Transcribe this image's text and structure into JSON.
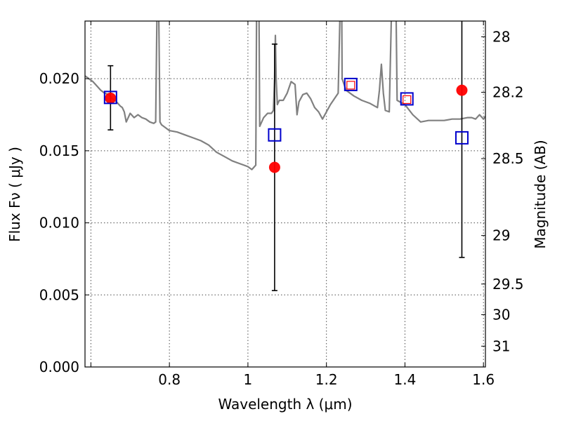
{
  "chart_data": {
    "type": "scatter",
    "xlabel": "Wavelength  λ (μm)",
    "ylabel": "Flux  Fν  ( μJy )",
    "ylabel_right": "Magnitude (AB)",
    "xlim": [
      0.585,
      1.605
    ],
    "ylim": [
      0.0,
      0.024
    ],
    "x_ticks": [
      0.6,
      0.8,
      1.0,
      1.2,
      1.4,
      1.6
    ],
    "x_tick_labels": [
      "",
      "0.8",
      "1",
      "1.2",
      "1.4",
      "1.6"
    ],
    "y_ticks": [
      0.0,
      0.005,
      0.01,
      0.015,
      0.02
    ],
    "y_tick_labels": [
      "0.000",
      "0.005",
      "0.010",
      "0.015",
      "0.020"
    ],
    "right_ticks": [
      {
        "mag": 28,
        "label": "28"
      },
      {
        "mag": 28.2,
        "label": "28.2"
      },
      {
        "mag": 28.5,
        "label": "28.5"
      },
      {
        "mag": 29,
        "label": "29"
      },
      {
        "mag": 29.5,
        "label": "29.5"
      },
      {
        "mag": 30,
        "label": "30"
      },
      {
        "mag": 31,
        "label": "31"
      }
    ],
    "grid": true,
    "colors": {
      "model": "#808080",
      "observed": "#ff0000",
      "model_band": "#0000cc",
      "errorbar": "#000000"
    },
    "model_spectrum": {
      "x": [
        0.585,
        0.595,
        0.605,
        0.615,
        0.625,
        0.635,
        0.645,
        0.655,
        0.665,
        0.675,
        0.68,
        0.685,
        0.69,
        0.7,
        0.71,
        0.72,
        0.73,
        0.74,
        0.75,
        0.76,
        0.765,
        0.768,
        0.77,
        0.773,
        0.776,
        0.78,
        0.79,
        0.8,
        0.82,
        0.84,
        0.86,
        0.88,
        0.9,
        0.92,
        0.94,
        0.96,
        0.98,
        0.99,
        1.0,
        1.01,
        1.02,
        1.023,
        1.027,
        1.03,
        1.04,
        1.05,
        1.06,
        1.065,
        1.068,
        1.07,
        1.072,
        1.075,
        1.08,
        1.09,
        1.1,
        1.11,
        1.12,
        1.125,
        1.13,
        1.14,
        1.15,
        1.16,
        1.17,
        1.18,
        1.19,
        1.2,
        1.21,
        1.22,
        1.23,
        1.235,
        1.238,
        1.24,
        1.25,
        1.27,
        1.29,
        1.31,
        1.33,
        1.335,
        1.34,
        1.345,
        1.35,
        1.36,
        1.37,
        1.375,
        1.38,
        1.4,
        1.42,
        1.44,
        1.46,
        1.48,
        1.5,
        1.52,
        1.54,
        1.56,
        1.57,
        1.58,
        1.59,
        1.6,
        1.605
      ],
      "y": [
        0.0202,
        0.02,
        0.0198,
        0.0195,
        0.0192,
        0.019,
        0.0189,
        0.0186,
        0.0184,
        0.0181,
        0.018,
        0.0177,
        0.017,
        0.0176,
        0.0173,
        0.0175,
        0.0173,
        0.0172,
        0.017,
        0.0169,
        0.017,
        0.024,
        0.03,
        0.024,
        0.017,
        0.0168,
        0.0166,
        0.0164,
        0.0163,
        0.0161,
        0.0159,
        0.0157,
        0.0154,
        0.0149,
        0.0146,
        0.0143,
        0.0141,
        0.014,
        0.0139,
        0.0137,
        0.014,
        0.03,
        0.03,
        0.0167,
        0.0173,
        0.0176,
        0.0176,
        0.0178,
        0.02,
        0.023,
        0.02,
        0.0182,
        0.0185,
        0.0185,
        0.019,
        0.0198,
        0.0196,
        0.0175,
        0.0184,
        0.0189,
        0.019,
        0.0186,
        0.018,
        0.0177,
        0.0172,
        0.0177,
        0.0182,
        0.0186,
        0.019,
        0.025,
        0.03,
        0.02,
        0.0192,
        0.0188,
        0.0185,
        0.0183,
        0.018,
        0.0192,
        0.021,
        0.019,
        0.0178,
        0.0177,
        0.03,
        0.03,
        0.0185,
        0.0182,
        0.0175,
        0.017,
        0.0171,
        0.0171,
        0.0171,
        0.0172,
        0.0172,
        0.0173,
        0.0173,
        0.0172,
        0.0175,
        0.0172,
        0.0174
      ]
    },
    "observed_points": [
      {
        "x": 0.65,
        "y": 0.01865,
        "yerr_low": 0.01645,
        "yerr_high": 0.0209
      },
      {
        "x": 1.068,
        "y": 0.01385,
        "yerr_low": 0.0053,
        "yerr_high": 0.0224
      },
      {
        "x": 1.545,
        "y": 0.0192,
        "yerr_low": 0.0076,
        "yerr_high": 0.0301
      }
    ],
    "model_band_points": [
      {
        "x": 0.65,
        "y": 0.0187
      },
      {
        "x": 1.068,
        "y": 0.0161
      },
      {
        "x": 1.262,
        "y": 0.0196
      },
      {
        "x": 1.405,
        "y": 0.0186
      },
      {
        "x": 1.545,
        "y": 0.0159
      }
    ],
    "inner_square_points": [
      {
        "x": 1.262,
        "y": 0.01955
      },
      {
        "x": 1.405,
        "y": 0.01855
      }
    ]
  }
}
